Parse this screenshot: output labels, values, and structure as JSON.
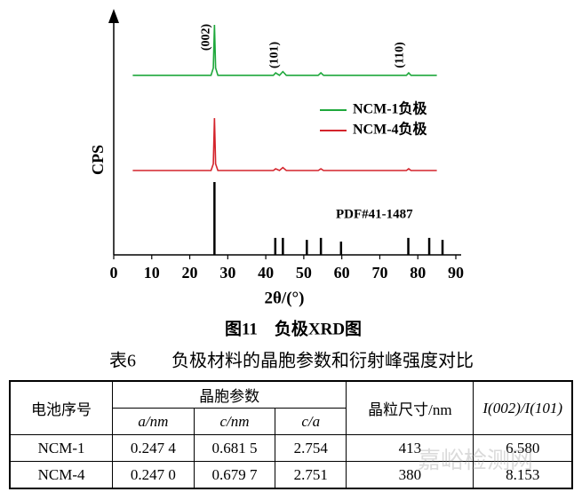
{
  "chart_data": {
    "type": "line",
    "xlabel": "2θ/(°)",
    "ylabel": "CPS",
    "x": [
      5,
      25.6,
      26.2,
      26.5,
      26.8,
      27.4,
      42,
      42.6,
      43.6,
      44.5,
      45.4,
      53.8,
      54.5,
      55.2,
      77.0,
      77.6,
      78.2,
      85
    ],
    "series": [
      {
        "name": "NCM-1负极",
        "color": "#1fa83c",
        "values": [
          73,
          73,
          76,
          93.5,
          76,
          73,
          73,
          74,
          73,
          74.5,
          73,
          73,
          74,
          73,
          73,
          74,
          73,
          73
        ]
      },
      {
        "name": "NCM-4负极",
        "color": "#d4242c",
        "values": [
          34.3,
          34.3,
          37,
          55.6,
          37,
          34.3,
          34.3,
          35,
          34.3,
          35.5,
          34.3,
          34.3,
          35,
          34.3,
          34.3,
          35,
          34.3,
          34.3
        ]
      }
    ],
    "reference": {
      "name": "PDF#41-1487",
      "color": "#000000",
      "positions": [
        26.5,
        42.5,
        44.5,
        50.8,
        54.5,
        59.8,
        77.5,
        83.0,
        86.5
      ],
      "values": [
        29.6,
        6.9,
        6.9,
        6.1,
        6.9,
        5.4,
        6.9,
        6.9,
        6.1
      ]
    },
    "annotations": [
      {
        "text": "(002)",
        "x": 26.5
      },
      {
        "text": "(101)",
        "x": 44.5
      },
      {
        "text": "(110)",
        "x": 77.5
      }
    ],
    "xlim": [
      0,
      90
    ],
    "xticks": [
      0,
      10,
      20,
      30,
      40,
      50,
      60,
      70,
      80,
      90
    ],
    "ylim": [
      0,
      100
    ],
    "legend": "right"
  },
  "figure_caption": "图11　负极XRD图",
  "table": {
    "title": "表6　　负极材料的晶胞参数和衍射峰强度对比",
    "header": [
      [
        "电池序号",
        "晶胞参数",
        "晶粒尺寸/nm",
        "I(002)/I(101)"
      ],
      [
        "a/nm",
        "c/nm",
        "c/a"
      ]
    ],
    "rows": [
      [
        "NCM-1",
        "0.247 4",
        "0.681 5",
        "2.754",
        "413",
        "6.580"
      ],
      [
        "NCM-4",
        "0.247 0",
        "0.679 7",
        "2.751",
        "380",
        "8.153"
      ]
    ]
  },
  "watermark": "嘉峪检测网"
}
